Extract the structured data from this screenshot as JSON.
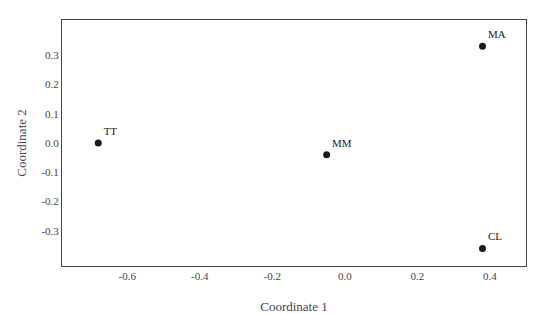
{
  "chart_data": {
    "type": "scatter",
    "xlabel": "Coordinate 1",
    "ylabel": "Coordinate 2",
    "labels": [
      "MA",
      "TT",
      "MM",
      "CL"
    ],
    "x": [
      0.38,
      -0.68,
      -0.05,
      0.38
    ],
    "y": [
      0.33,
      0.0,
      -0.04,
      -0.36
    ],
    "color": "#1a1a1a",
    "xlim": [
      -0.78,
      0.5
    ],
    "ylim": [
      -0.42,
      0.42
    ],
    "xticks": [
      -0.6,
      -0.4,
      -0.2,
      {
        "value": 0.0,
        "label": "0.0"
      },
      0.2,
      0.4
    ],
    "yticks": [
      -0.3,
      -0.2,
      -0.1,
      {
        "value": 0.0,
        "label": "0.0"
      },
      0.1,
      0.2,
      0.3
    ],
    "grid": false
  }
}
